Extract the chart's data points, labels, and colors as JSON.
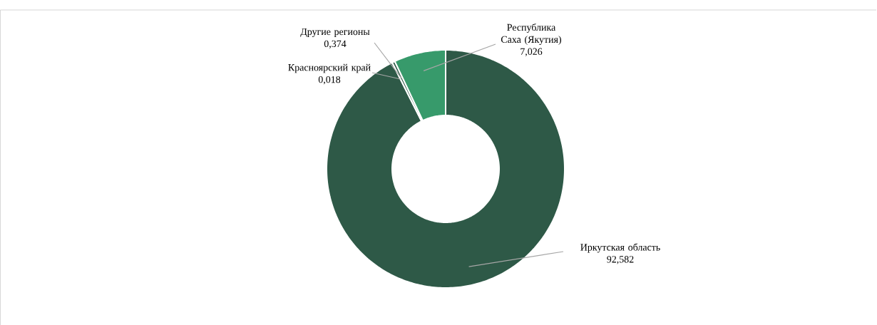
{
  "chart_data": {
    "type": "donut",
    "categories": [
      "Иркутская область",
      "Красноярский край",
      "Другие регионы",
      "Республика Саха (Якутия)"
    ],
    "values": [
      92.582,
      0.018,
      0.374,
      7.026
    ],
    "colors": [
      "#2e5947",
      "#2e5947",
      "#2e5947",
      "#379a6b"
    ],
    "value_labels": [
      "92,582",
      "0,018",
      "0,374",
      "7,026"
    ]
  }
}
